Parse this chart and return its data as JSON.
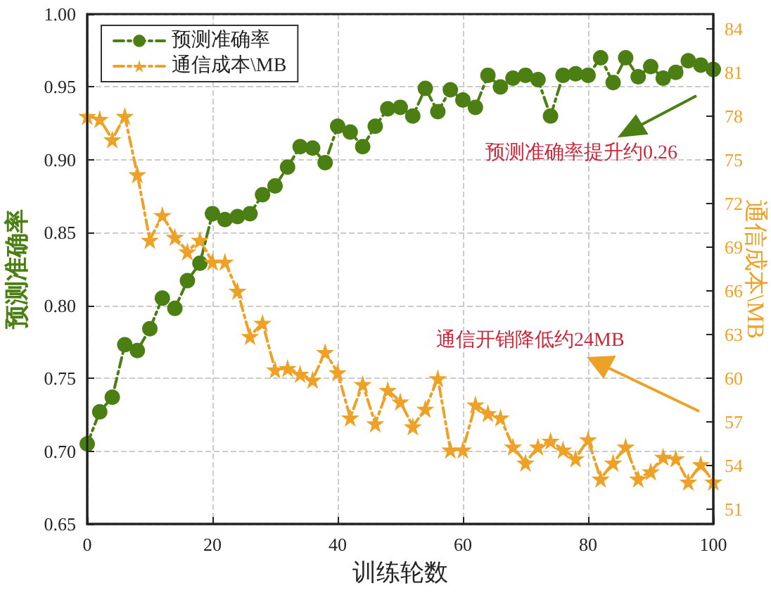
{
  "chart_data": {
    "type": "line",
    "xlabel": "训练轮数",
    "ylabel": "预测准确率",
    "y2label": "通信成本\\MB",
    "x": [
      0,
      2,
      4,
      6,
      8,
      10,
      12,
      14,
      16,
      18,
      20,
      22,
      24,
      26,
      28,
      30,
      32,
      34,
      36,
      38,
      40,
      42,
      44,
      46,
      48,
      50,
      52,
      54,
      56,
      58,
      60,
      62,
      64,
      66,
      68,
      70,
      72,
      74,
      76,
      78,
      80,
      82,
      84,
      86,
      88,
      90,
      92,
      94,
      96,
      98,
      100
    ],
    "series": [
      {
        "name": "预测准确率",
        "color": "#4b7f13",
        "marker": "circle",
        "line_style": "dashed",
        "values": [
          0.705,
          0.727,
          0.737,
          0.773,
          0.769,
          0.784,
          0.805,
          0.798,
          0.817,
          0.829,
          0.863,
          0.859,
          0.861,
          0.863,
          0.876,
          0.882,
          0.895,
          0.909,
          0.908,
          0.898,
          0.923,
          0.919,
          0.909,
          0.923,
          0.935,
          0.936,
          0.93,
          0.949,
          0.933,
          0.948,
          0.941,
          0.936,
          0.958,
          0.95,
          0.956,
          0.958,
          0.955,
          0.93,
          0.958,
          0.959,
          0.958,
          0.97,
          0.953,
          0.97,
          0.957,
          0.964,
          0.956,
          0.96,
          0.968,
          0.965,
          0.962
        ]
      },
      {
        "name": "通信成本\\MB",
        "color": "#eea127",
        "marker": "star",
        "line_style": "dashed",
        "axis": "y2",
        "values": [
          78.0,
          77.8,
          76.4,
          78.0,
          74.0,
          69.5,
          71.2,
          69.7,
          68.7,
          69.5,
          68.0,
          68.0,
          66.0,
          62.9,
          63.8,
          60.6,
          60.7,
          60.3,
          59.9,
          61.8,
          60.4,
          57.3,
          59.6,
          56.9,
          59.2,
          58.4,
          56.7,
          57.9,
          60.0,
          55.1,
          55.1,
          58.2,
          57.6,
          57.3,
          55.3,
          54.2,
          55.3,
          55.7,
          55.1,
          54.5,
          55.8,
          53.1,
          54.2,
          55.3,
          53.1,
          53.6,
          54.6,
          54.5,
          52.9,
          54.1,
          52.9
        ]
      }
    ],
    "xlim": [
      0,
      100
    ],
    "xticks": [
      0,
      20,
      40,
      60,
      80,
      100
    ],
    "ylim": [
      0.65,
      1.0
    ],
    "yticks": [
      {
        "value": 0.65,
        "label": "0.65"
      },
      {
        "value": 0.7,
        "label": "0.70"
      },
      {
        "value": 0.75,
        "label": "0.75"
      },
      {
        "value": 0.8,
        "label": "0.80"
      },
      {
        "value": 0.85,
        "label": "0.85"
      },
      {
        "value": 0.9,
        "label": "0.90"
      },
      {
        "value": 0.95,
        "label": "0.95"
      },
      {
        "value": 1.0,
        "label": "1.00"
      }
    ],
    "y2lim": [
      50,
      85
    ],
    "y2ticks": [
      51,
      54,
      57,
      60,
      63,
      66,
      69,
      72,
      75,
      78,
      81,
      84
    ],
    "annotations": [
      "预测准确率提升约0.26",
      "通信开销降低约24MB"
    ],
    "grid": true,
    "legend": "top left"
  }
}
